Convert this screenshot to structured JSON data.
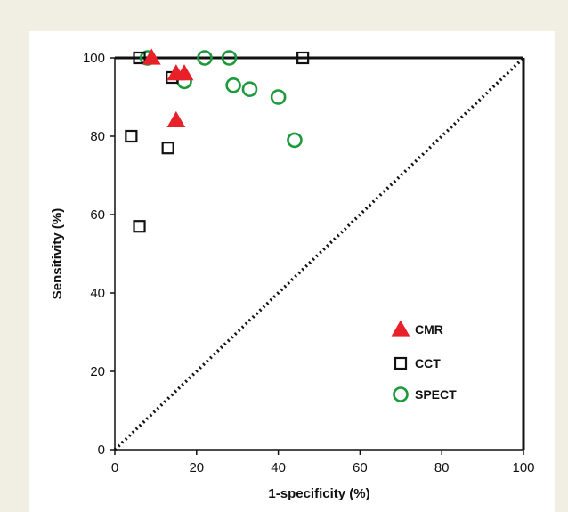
{
  "chart_data": {
    "type": "scatter",
    "xlabel": "1-specificity (%)",
    "ylabel": "Sensitivity (%)",
    "xlim": [
      0,
      100
    ],
    "ylim": [
      0,
      100
    ],
    "x_ticks": [
      "0",
      "20",
      "40",
      "60",
      "80",
      "100"
    ],
    "y_ticks": [
      "0",
      "20",
      "40",
      "60",
      "80",
      "100"
    ],
    "grid": false,
    "reference_line": {
      "style": "dotted",
      "from": [
        0,
        0
      ],
      "to": [
        100,
        100
      ]
    },
    "legend_position": "bottom-right",
    "series": [
      {
        "name": "CMR",
        "marker": "filled-triangle",
        "color": "#e8202a",
        "points": [
          [
            9,
            100
          ],
          [
            15,
            96
          ],
          [
            17,
            96
          ],
          [
            15,
            84
          ]
        ]
      },
      {
        "name": "CCT",
        "marker": "open-square",
        "color": "#111111",
        "points": [
          [
            6,
            100
          ],
          [
            14,
            95
          ],
          [
            46,
            100
          ],
          [
            4,
            80
          ],
          [
            13,
            77
          ],
          [
            6,
            57
          ]
        ]
      },
      {
        "name": "SPECT",
        "marker": "open-circle",
        "color": "#1a9a3a",
        "points": [
          [
            8,
            100
          ],
          [
            22,
            100
          ],
          [
            28,
            100
          ],
          [
            17,
            94
          ],
          [
            29,
            93
          ],
          [
            33,
            92
          ],
          [
            40,
            90
          ],
          [
            44,
            79
          ]
        ]
      }
    ]
  }
}
